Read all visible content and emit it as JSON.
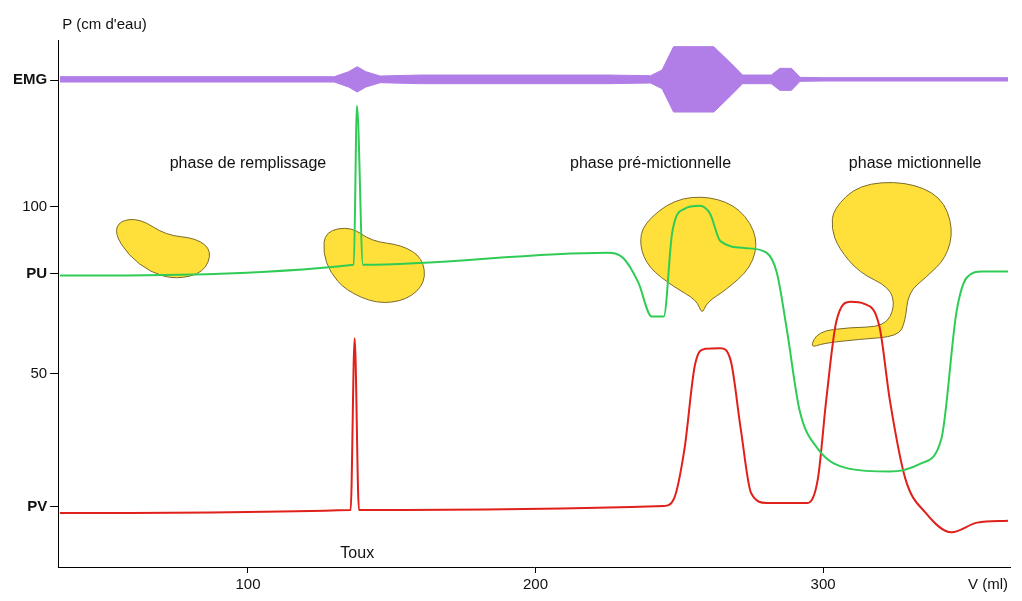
{
  "chart_data": {
    "type": "line",
    "x_label": "V (ml)",
    "y_label": "P (cm d'eau)",
    "xlim": [
      34,
      365
    ],
    "xticks": [
      100,
      200,
      300
    ],
    "ylim": [
      -8,
      150
    ],
    "yticks": [
      {
        "value": 10,
        "label": "PV"
      },
      50,
      {
        "value": 80,
        "label": "PU"
      },
      100,
      {
        "value": 138,
        "label": "EMG"
      }
    ],
    "grid": false,
    "series": [
      {
        "name": "EMG",
        "color": "#b07ee6",
        "x": [
          34.6,
          130,
          135,
          138,
          141,
          146,
          160,
          225,
          240,
          244,
          248,
          262,
          268,
          272,
          282,
          285,
          289,
          292,
          300,
          364.3
        ],
        "upper": [
          139,
          139,
          140.5,
          142,
          140.5,
          139.2,
          139.5,
          139.5,
          139.3,
          141,
          148,
          148,
          143,
          139.5,
          139.5,
          141.5,
          141.5,
          138.8,
          138.7,
          138.7
        ],
        "lower": [
          137.4,
          137.4,
          135.9,
          134.4,
          135.9,
          137.2,
          136.9,
          136.9,
          137.1,
          135.4,
          128.4,
          128.4,
          133.4,
          136.9,
          136.9,
          134.9,
          134.9,
          137.6,
          137.7,
          137.7
        ]
      },
      {
        "name": "PU",
        "color": "#2fcc55",
        "x": [
          34.6,
          136.8,
          137.9,
          140,
          225,
          230.4,
          235.7,
          240.4,
          244.6,
          247.5,
          251.8,
          257.1,
          260.7,
          264.3,
          273.2,
          280.4,
          283.9,
          287.5,
          291.8,
          298.2,
          308.9,
          323.2,
          333.9,
          341.1,
          346.4,
          350,
          355.4,
          364.3
        ],
        "values": [
          79.4,
          82.6,
          130.3,
          82.6,
          86.2,
          84.7,
          77.4,
          67.1,
          67.1,
          92.1,
          99.4,
          100.3,
          97.9,
          89.7,
          87.6,
          86.2,
          80.3,
          62.6,
          39.1,
          27.4,
          21.5,
          20.6,
          23,
          30.3,
          68.5,
          78.8,
          80.6,
          80.6
        ]
      },
      {
        "name": "PV",
        "color": "#e0201b",
        "x": [
          34.6,
          135.7,
          137.1,
          138.6,
          244.6,
          248.2,
          251.8,
          255.4,
          258.9,
          264.3,
          267.9,
          271.4,
          275,
          280.4,
          294.6,
          298.2,
          301.1,
          304.6,
          309.6,
          314.3,
          319.6,
          323.2,
          328.6,
          335.7,
          344.6,
          353.6,
          364.3
        ],
        "values": [
          8.2,
          9.1,
          60.6,
          9.1,
          10.3,
          12.6,
          27.4,
          52.4,
          57.4,
          57.6,
          53.8,
          33.2,
          14.1,
          11.2,
          11.2,
          18.5,
          42.1,
          65.6,
          71.5,
          70.9,
          64.1,
          42.1,
          18.5,
          8.2,
          2.4,
          5.3,
          5.9
        ]
      }
    ],
    "annotations": [
      {
        "text": "phase de remplissage",
        "x": 100,
        "y": 113
      },
      {
        "text": "phase pré-mictionnelle",
        "x": 240,
        "y": 113
      },
      {
        "text": "phase mictionnelle",
        "x": 332,
        "y": 113
      },
      {
        "text": "Toux",
        "x": 138,
        "y": -4
      }
    ]
  }
}
